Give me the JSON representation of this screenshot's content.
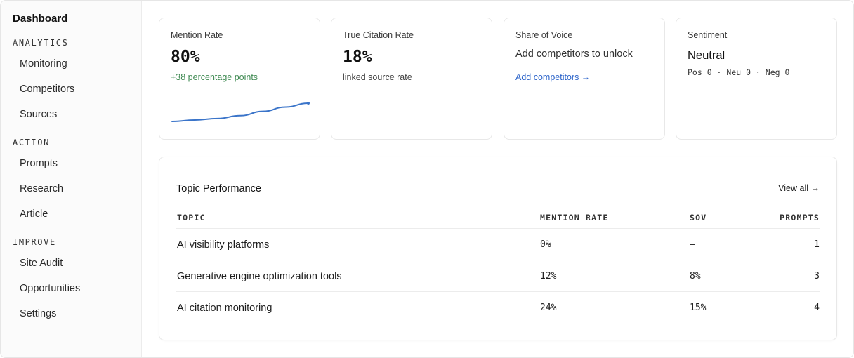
{
  "sidebar": {
    "title": "Dashboard",
    "sections": [
      {
        "label": "ANALYTICS",
        "items": [
          "Monitoring",
          "Competitors",
          "Sources"
        ]
      },
      {
        "label": "ACTION",
        "items": [
          "Prompts",
          "Research",
          "Article"
        ]
      },
      {
        "label": "IMPROVE",
        "items": [
          "Site Audit",
          "Opportunities",
          "Settings"
        ]
      }
    ]
  },
  "cards": {
    "mention": {
      "label": "Mention Rate",
      "value": "80%",
      "delta": "+38 percentage points",
      "trend": [
        42,
        45,
        48,
        54,
        63,
        72,
        80
      ],
      "color": "#3a74c9"
    },
    "citation": {
      "label": "True Citation Rate",
      "value": "18%",
      "sub": "linked source rate"
    },
    "sov": {
      "label": "Share of Voice",
      "message": "Add competitors to unlock",
      "link": "Add competitors →"
    },
    "sentiment": {
      "label": "Sentiment",
      "value": "Neutral",
      "counts": "Pos 0 · Neu 0 · Neg 0"
    }
  },
  "topics": {
    "title": "Topic Performance",
    "view_all": "View all →",
    "columns": {
      "topic": "TOPIC",
      "rate": "MENTION RATE",
      "sov": "SOV",
      "prompts": "PROMPTS"
    },
    "rows": [
      {
        "topic": "AI visibility platforms",
        "rate": "0%",
        "sov": "—",
        "prompts": "1"
      },
      {
        "topic": "Generative engine optimization tools",
        "rate": "12%",
        "sov": "8%",
        "prompts": "3"
      },
      {
        "topic": "AI citation monitoring",
        "rate": "24%",
        "sov": "15%",
        "prompts": "4"
      }
    ]
  }
}
